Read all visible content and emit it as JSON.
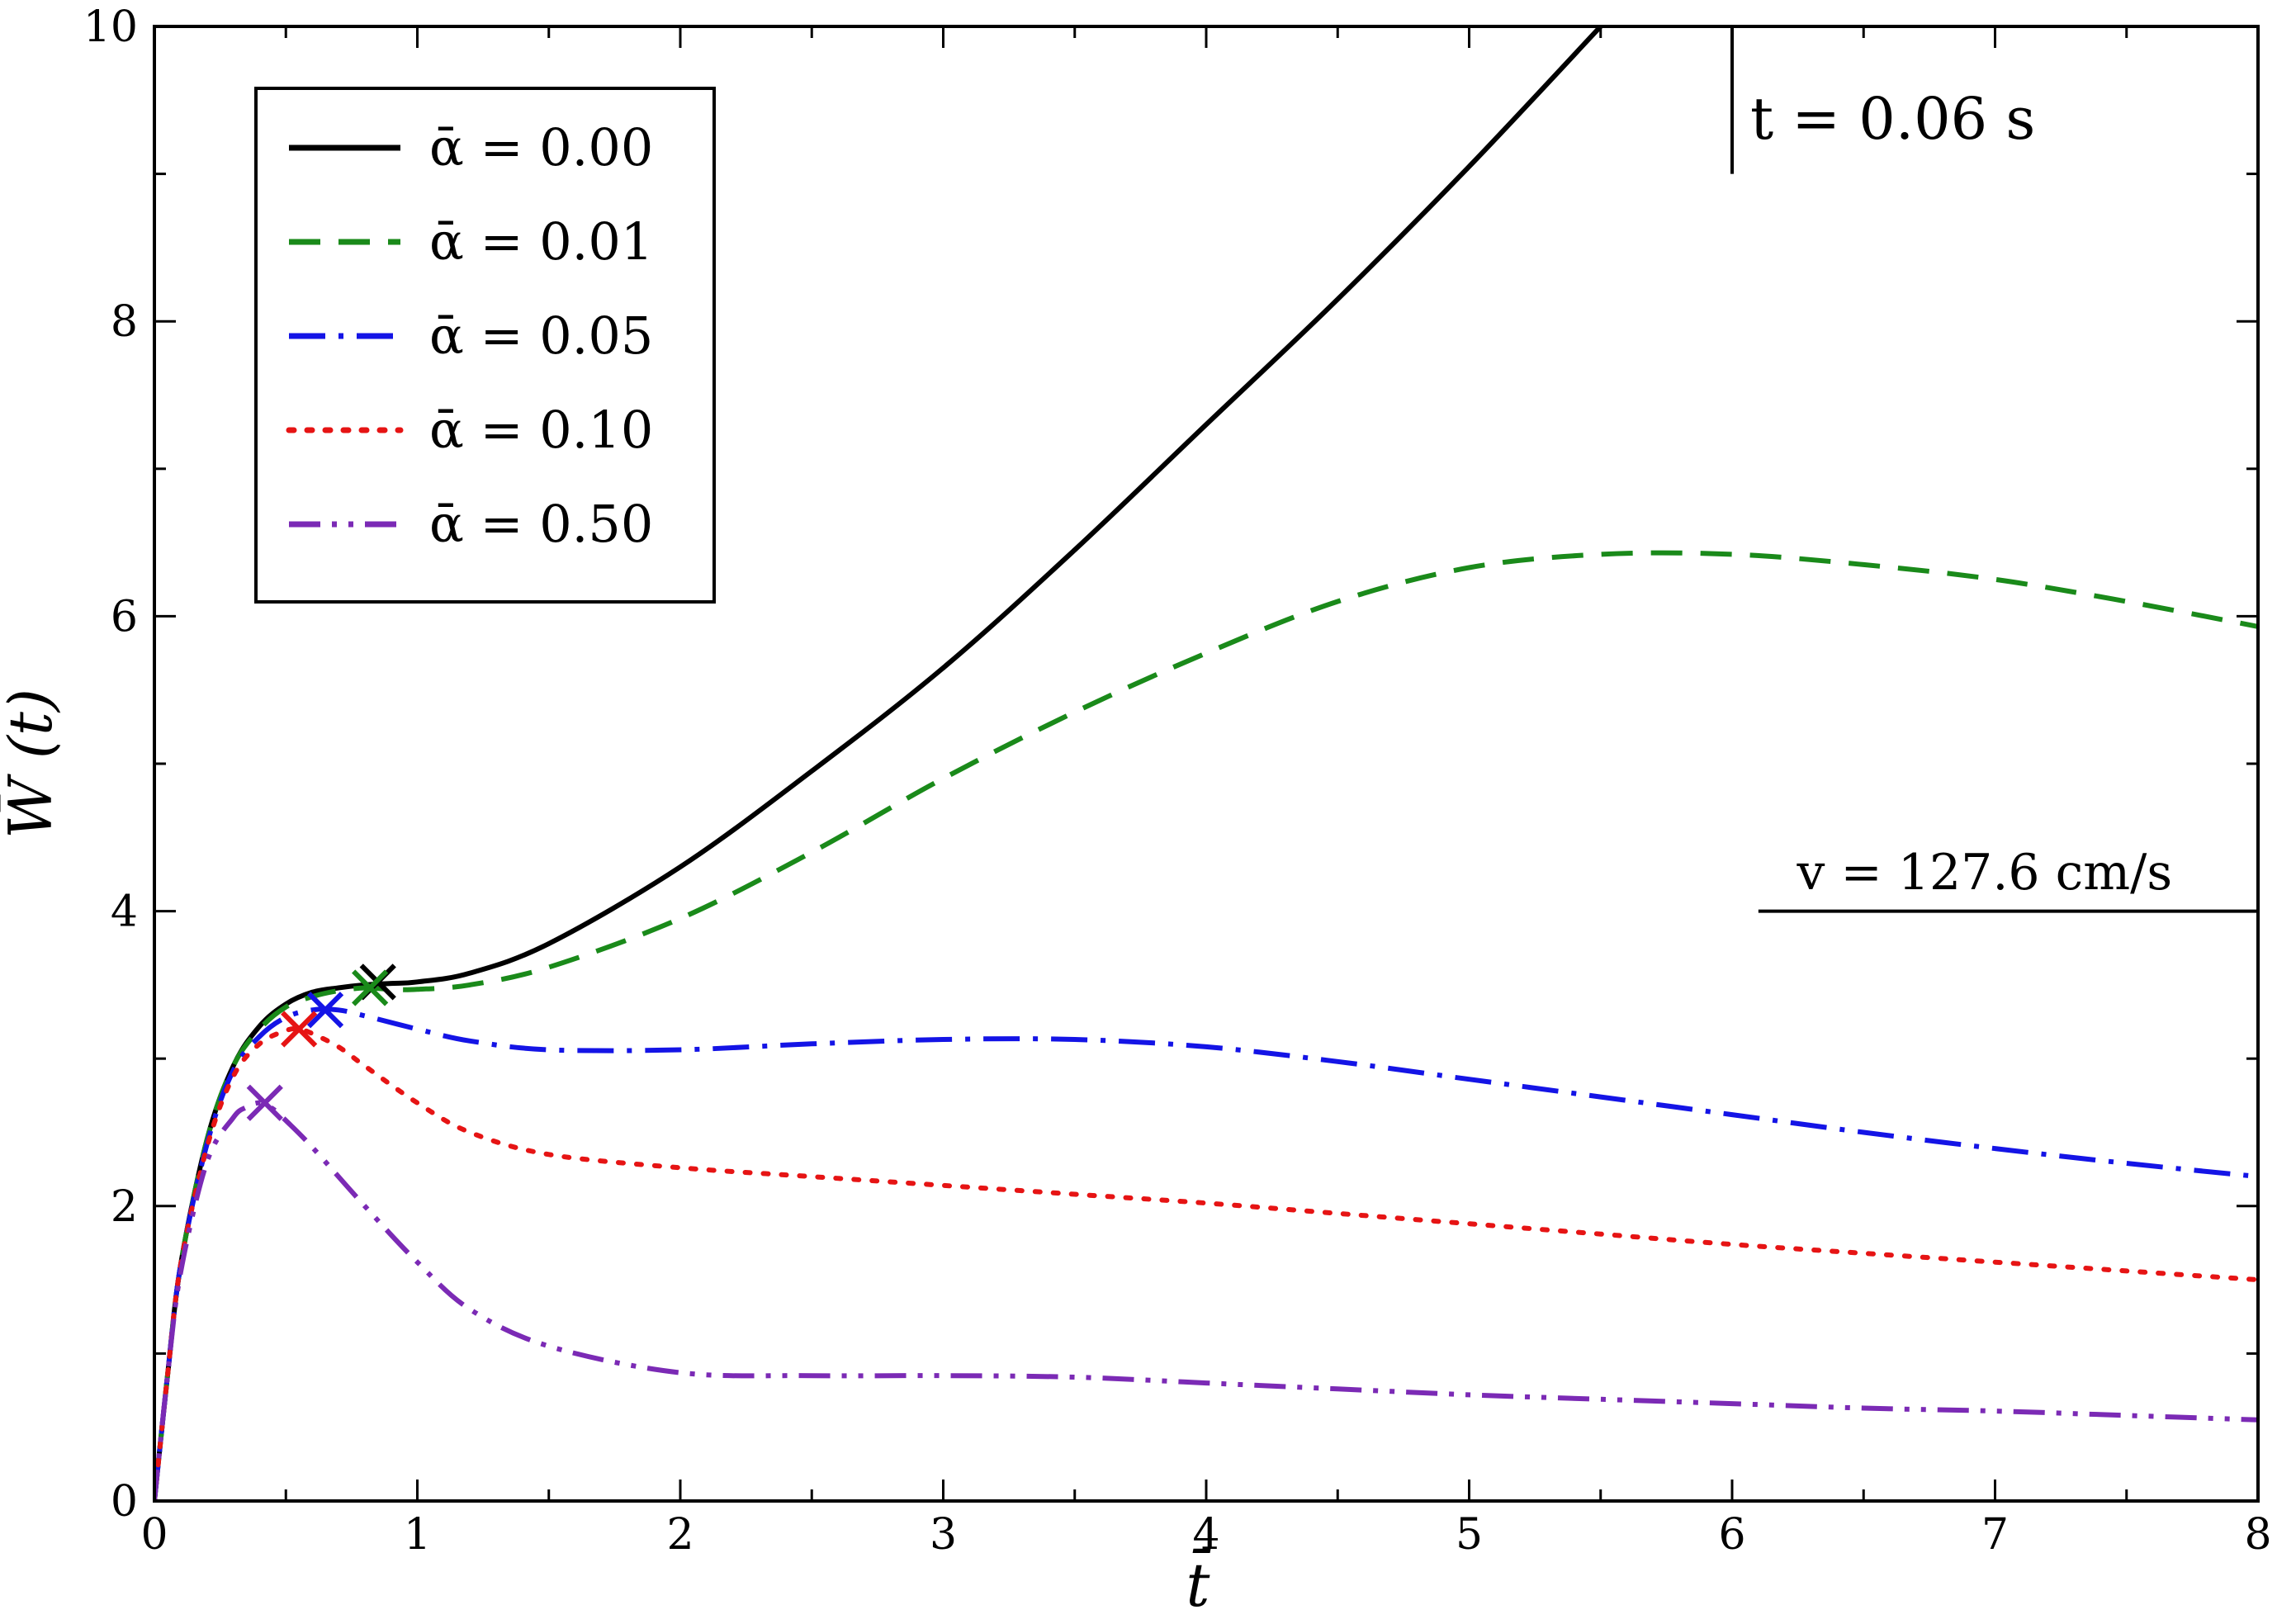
{
  "chart_data": {
    "type": "line",
    "xlabel": "t̄",
    "ylabel": "W̄ (t̄)",
    "xlim": [
      0,
      8
    ],
    "ylim": [
      0,
      10
    ],
    "x_ticks": [
      "0",
      "1",
      "2",
      "3",
      "4",
      "5",
      "6",
      "7",
      "8"
    ],
    "y_ticks": [
      "0",
      "2",
      "4",
      "6",
      "8",
      "10"
    ],
    "legend_position": "top-left",
    "series": [
      {
        "name": "ᾱ = 0.00",
        "color": "#000000",
        "style": "solid",
        "x": [
          0,
          0.05,
          0.1,
          0.2,
          0.3,
          0.4,
          0.5,
          0.6,
          0.7,
          0.8,
          0.9,
          1.0,
          1.2,
          1.5,
          2.0,
          2.5,
          3.0,
          3.5,
          4.0,
          4.5,
          5.0,
          5.5
        ],
        "y": [
          0,
          0.85,
          1.6,
          2.45,
          2.95,
          3.22,
          3.37,
          3.45,
          3.48,
          3.5,
          3.51,
          3.52,
          3.58,
          3.78,
          4.3,
          4.95,
          5.65,
          6.45,
          7.3,
          8.15,
          9.05,
          10.0
        ],
        "marker_x": 0.85,
        "marker_y": 3.52
      },
      {
        "name": "ᾱ = 0.01",
        "color": "#1a8a1a",
        "style": "dashed",
        "x": [
          0,
          0.05,
          0.1,
          0.2,
          0.3,
          0.4,
          0.5,
          0.6,
          0.7,
          0.8,
          0.9,
          1.0,
          1.2,
          1.5,
          2.0,
          2.5,
          3.0,
          3.5,
          4.0,
          4.5,
          5.0,
          5.5,
          6.0,
          6.5,
          7.0,
          7.5,
          8.0
        ],
        "y": [
          0,
          0.85,
          1.6,
          2.45,
          2.95,
          3.2,
          3.35,
          3.42,
          3.46,
          3.48,
          3.47,
          3.47,
          3.5,
          3.62,
          3.95,
          4.4,
          4.9,
          5.35,
          5.75,
          6.1,
          6.33,
          6.42,
          6.42,
          6.35,
          6.25,
          6.1,
          5.93
        ],
        "marker_x": 0.82,
        "marker_y": 3.48
      },
      {
        "name": "ᾱ = 0.05",
        "color": "#1414e6",
        "style": "dash-dot",
        "x": [
          0,
          0.05,
          0.1,
          0.2,
          0.3,
          0.4,
          0.5,
          0.6,
          0.7,
          0.8,
          1.0,
          1.2,
          1.5,
          2.0,
          2.5,
          3.0,
          3.5,
          4.0,
          4.5,
          5.0,
          5.5,
          6.0,
          6.5,
          7.0,
          7.5,
          8.0
        ],
        "y": [
          0,
          0.85,
          1.6,
          2.42,
          2.92,
          3.15,
          3.28,
          3.33,
          3.33,
          3.29,
          3.2,
          3.12,
          3.06,
          3.06,
          3.1,
          3.13,
          3.13,
          3.08,
          2.98,
          2.86,
          2.74,
          2.62,
          2.5,
          2.39,
          2.29,
          2.2
        ],
        "marker_x": 0.65,
        "marker_y": 3.33
      },
      {
        "name": "ᾱ = 0.10",
        "color": "#e61414",
        "style": "dotted",
        "x": [
          0,
          0.05,
          0.1,
          0.2,
          0.3,
          0.4,
          0.5,
          0.55,
          0.6,
          0.7,
          0.8,
          1.0,
          1.2,
          1.5,
          2.0,
          2.5,
          3.0,
          3.5,
          4.0,
          4.5,
          5.0,
          5.5,
          6.0,
          6.5,
          7.0,
          7.5,
          8.0
        ],
        "y": [
          0,
          0.85,
          1.6,
          2.4,
          2.88,
          3.1,
          3.19,
          3.2,
          3.17,
          3.08,
          2.95,
          2.7,
          2.5,
          2.35,
          2.26,
          2.2,
          2.14,
          2.08,
          2.02,
          1.95,
          1.88,
          1.81,
          1.74,
          1.68,
          1.62,
          1.56,
          1.5
        ],
        "marker_x": 0.55,
        "marker_y": 3.2
      },
      {
        "name": "ᾱ = 0.50",
        "color": "#7b2ab5",
        "style": "dash-dot-dot",
        "x": [
          0,
          0.05,
          0.1,
          0.2,
          0.3,
          0.35,
          0.4,
          0.45,
          0.5,
          0.6,
          0.8,
          1.0,
          1.2,
          1.5,
          2.0,
          2.5,
          3.0,
          3.5,
          4.0,
          4.5,
          5.0,
          5.5,
          6.0,
          6.5,
          7.0,
          7.5,
          8.0
        ],
        "y": [
          0,
          0.85,
          1.55,
          2.3,
          2.6,
          2.67,
          2.7,
          2.66,
          2.58,
          2.4,
          2.0,
          1.62,
          1.3,
          1.05,
          0.87,
          0.85,
          0.85,
          0.84,
          0.8,
          0.76,
          0.72,
          0.69,
          0.66,
          0.63,
          0.61,
          0.58,
          0.55
        ],
        "marker_x": 0.42,
        "marker_y": 2.7
      }
    ],
    "annotations": [
      {
        "text": "t = 0.06 s",
        "x": 6.0,
        "y": 9.35
      },
      {
        "text": "v = 127.6 cm/s",
        "x": 7.0,
        "y": 4.25
      }
    ],
    "reference_lines": [
      {
        "kind": "vertical",
        "x": 6.0,
        "y_from": 9.0,
        "y_to": 10.0
      },
      {
        "kind": "horizontal",
        "y": 4.0,
        "x_from": 6.1,
        "x_to": 8.0
      }
    ]
  }
}
